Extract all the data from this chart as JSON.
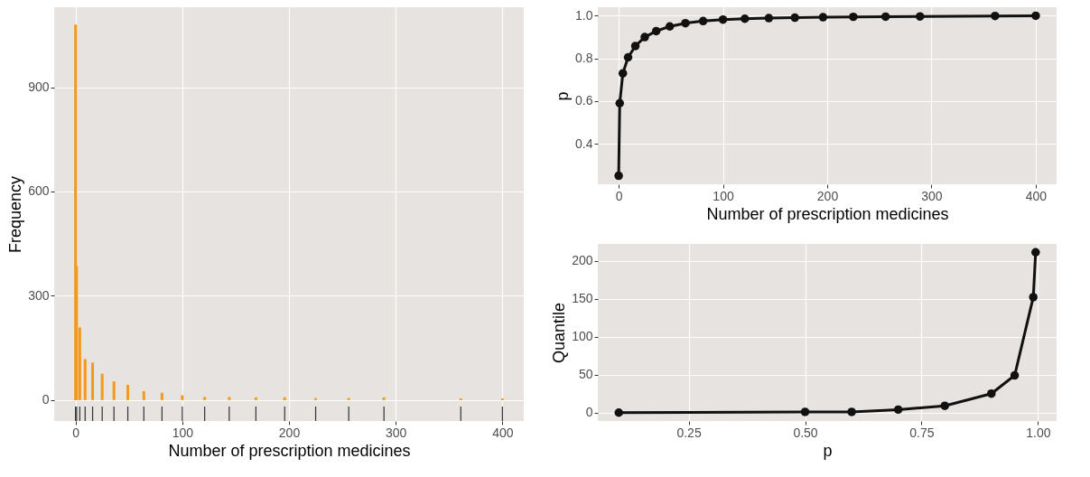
{
  "chart_data": [
    {
      "type": "bar",
      "xlabel": "Number of prescription medicines",
      "ylabel": "Frequency",
      "color": "#f39a1c",
      "x": [
        0,
        1,
        4,
        9,
        16,
        25,
        36,
        49,
        64,
        81,
        100,
        121,
        144,
        169,
        196,
        225,
        256,
        289,
        361,
        400
      ],
      "values": [
        1080,
        386,
        209,
        118,
        108,
        76,
        54,
        44,
        26,
        21,
        14,
        9,
        9,
        8,
        8,
        6,
        6,
        8,
        5,
        5
      ],
      "xlim": [
        -20,
        420
      ],
      "xticks": [
        0,
        100,
        200,
        300,
        400
      ],
      "ylim": [
        -60,
        1130
      ],
      "yticks": [
        0,
        300,
        600,
        900
      ],
      "grid": true
    },
    {
      "type": "line",
      "xlabel": "Number of prescription medicines",
      "ylabel": "p",
      "color": "#111111",
      "marker": "circle",
      "x": [
        0,
        1,
        4,
        9,
        16,
        25,
        36,
        49,
        64,
        81,
        100,
        121,
        144,
        169,
        196,
        225,
        256,
        289,
        361,
        400
      ],
      "values": [
        0.25,
        0.59,
        0.73,
        0.805,
        0.858,
        0.9,
        0.928,
        0.95,
        0.965,
        0.975,
        0.982,
        0.986,
        0.989,
        0.991,
        0.993,
        0.995,
        0.996,
        0.997,
        0.999,
        1.0
      ],
      "xlim": [
        -20,
        420
      ],
      "xticks": [
        0,
        100,
        200,
        300,
        400
      ],
      "ylim": [
        0.21,
        1.04
      ],
      "yticks": [
        0.4,
        0.6,
        0.8,
        {
          "value": 1.0,
          "label": "1.0"
        }
      ],
      "grid": true
    },
    {
      "type": "line",
      "xlabel": "p",
      "ylabel": "Quantile",
      "color": "#111111",
      "marker": "circle",
      "x": [
        0.1,
        0.5,
        0.6,
        0.7,
        0.8,
        0.9,
        0.95,
        0.99,
        0.995
      ],
      "values": [
        0,
        1,
        1,
        4,
        9,
        25,
        49,
        152,
        211
      ],
      "xlim": [
        0.055,
        1.04
      ],
      "xticks": [
        0.25,
        {
          "value": 0.5,
          "label": "0.50"
        },
        0.75,
        {
          "value": 1.0,
          "label": "1.00"
        }
      ],
      "ylim": [
        -11,
        222
      ],
      "yticks": [
        0,
        50,
        100,
        150,
        200
      ],
      "grid": true
    }
  ]
}
